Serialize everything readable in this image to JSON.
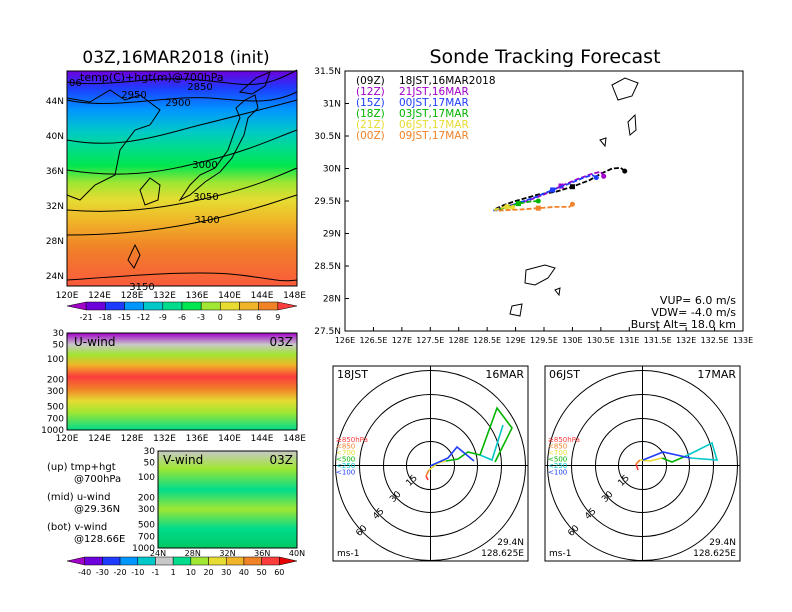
{
  "header": {
    "left_title": "03Z,16MAR2018 (init)",
    "right_title": "Sonde Tracking Forecast"
  },
  "map_panel": {
    "field_label": "temp(C)+hgt(m)@700hPa",
    "corner_value": "06",
    "lon_ticks": [
      "120E",
      "124E",
      "128E",
      "132E",
      "136E",
      "140E",
      "144E",
      "148E"
    ],
    "lat_ticks": [
      "44N",
      "40N",
      "36N",
      "32N",
      "28N",
      "24N"
    ],
    "contour_labels": [
      "2850",
      "2950",
      "2900",
      "3000",
      "3050",
      "3100",
      "3150"
    ],
    "colorbar_labels": [
      "-21",
      "-18",
      "-15",
      "-12",
      "-9",
      "-6",
      "-3",
      "0",
      "3",
      "6",
      "9"
    ],
    "colorbar_colors": [
      "#a000c8",
      "#6e00dc",
      "#1e3cff",
      "#0096ff",
      "#00c8c8",
      "#00dc8c",
      "#00e650",
      "#a0e632",
      "#e6dc32",
      "#f0b428",
      "#f08228",
      "#fa3c3c"
    ]
  },
  "uwind_panel": {
    "label": "U-wind",
    "time": "03Z",
    "p_ticks": [
      "30",
      "50",
      "100",
      "200",
      "300",
      "500",
      "700",
      "1000"
    ],
    "lon_ticks": [
      "120E",
      "124E",
      "128E",
      "132E",
      "136E",
      "140E",
      "144E",
      "148E"
    ]
  },
  "vwind_panel": {
    "label": "V-wind",
    "time": "03Z",
    "p_ticks": [
      "30",
      "50",
      "100",
      "200",
      "300",
      "500",
      "700",
      "1000"
    ],
    "lat_ticks": [
      "24N",
      "28N",
      "32N",
      "36N",
      "40N"
    ]
  },
  "legend_notes": {
    "up": "(up) tmp+hgt",
    "up_sub": "@700hPa",
    "mid": "(mid) u-wind",
    "mid_sub": "@29.36N",
    "bot": "(bot) v-wind",
    "bot_sub": "@128.66E"
  },
  "wind_colorbar": {
    "labels": [
      "-40",
      "-30",
      "-20",
      "-10",
      "-1",
      "1",
      "10",
      "20",
      "30",
      "40",
      "50",
      "60"
    ],
    "colors": [
      "#a000c8",
      "#6e00dc",
      "#1e3cff",
      "#0096ff",
      "#00c8c8",
      "#c8c8c8",
      "#00dc8c",
      "#a0e632",
      "#e6dc32",
      "#f0b428",
      "#f08228",
      "#fa3c3c",
      "#e60000"
    ]
  },
  "chart_data": {
    "type": "line",
    "title": "Sonde Tracking Forecast",
    "xlim": [
      126,
      133
    ],
    "ylim": [
      27.5,
      31.5
    ],
    "x_ticks": [
      "126E",
      "126.5E",
      "127E",
      "127.5E",
      "128E",
      "128.5E",
      "129E",
      "129.5E",
      "130E",
      "130.5E",
      "131E",
      "131.5E",
      "132E",
      "132.5E",
      "133E"
    ],
    "y_ticks": [
      "31.5N",
      "31N",
      "30.5N",
      "30N",
      "29.5N",
      "29N",
      "28.5N",
      "28N",
      "27.5N"
    ],
    "legend": [
      {
        "code": "(09Z)",
        "time": "18JST,16MAR2018",
        "color": "#000000"
      },
      {
        "code": "(12Z)",
        "time": "21JST,16MAR",
        "color": "#a000c8"
      },
      {
        "code": "(15Z)",
        "time": "00JST,17MAR",
        "color": "#1e3cff"
      },
      {
        "code": "(18Z)",
        "time": "03JST,17MAR",
        "color": "#00b400"
      },
      {
        "code": "(21Z)",
        "time": "06JST,17MAR",
        "color": "#e6dc32"
      },
      {
        "code": "(00Z)",
        "time": "09JST,17MAR",
        "color": "#f08228"
      }
    ],
    "series": [
      {
        "color": "#000000",
        "x": [
          130.92,
          130.85,
          130.7,
          130.5,
          130.3,
          130.0,
          129.7,
          129.4,
          129.2,
          129.0,
          128.8,
          128.65
        ],
        "y": [
          29.96,
          30.01,
          30.0,
          29.92,
          29.82,
          29.72,
          29.64,
          29.6,
          29.55,
          29.5,
          29.44,
          29.38
        ]
      },
      {
        "color": "#a000c8",
        "x": [
          130.55,
          130.5,
          130.35,
          130.1,
          129.8,
          129.5,
          129.2,
          128.95,
          128.75,
          128.62
        ],
        "y": [
          29.88,
          29.95,
          29.92,
          29.84,
          29.73,
          29.6,
          29.5,
          29.44,
          29.39,
          29.36
        ]
      },
      {
        "color": "#1e3cff",
        "x": [
          130.42,
          130.35,
          130.2,
          129.95,
          129.65,
          129.35,
          129.05,
          128.85,
          128.68,
          128.6
        ],
        "y": [
          29.86,
          29.9,
          29.86,
          29.77,
          29.67,
          29.56,
          29.47,
          29.41,
          29.37,
          29.35
        ]
      },
      {
        "color": "#00b400",
        "x": [
          129.4,
          129.25,
          129.05,
          128.9,
          128.75,
          128.62
        ],
        "y": [
          29.5,
          29.49,
          29.46,
          29.42,
          29.38,
          29.36
        ]
      },
      {
        "color": "#e6dc32",
        "x": [
          128.95,
          128.85,
          128.72,
          128.62
        ],
        "y": [
          29.4,
          29.41,
          29.39,
          29.36
        ]
      },
      {
        "color": "#f08228",
        "x": [
          130.0,
          129.95,
          129.7,
          129.4,
          129.1,
          128.85,
          128.65
        ],
        "y": [
          29.45,
          29.41,
          29.41,
          29.39,
          29.37,
          29.36,
          29.35
        ]
      }
    ],
    "annotations": {
      "vup": "VUP= 6.0 m/s",
      "vdw": "VDW= -4.0 m/s",
      "burst": "Burst Alt= 18.0 km"
    }
  },
  "hodographs": [
    {
      "left_label": "18JST",
      "right_label": "16MAR",
      "lat": "29.4N",
      "lon": "128.625E",
      "unit": "ms-1",
      "rings": [
        "15",
        "30",
        "45",
        "60"
      ],
      "levels": [
        {
          "t": "≥850hPa",
          "c": "#fa3c3c"
        },
        {
          "t": "<850",
          "c": "#f08228"
        },
        {
          "t": "<700",
          "c": "#e6dc32"
        },
        {
          "t": "<500",
          "c": "#00b400"
        },
        {
          "t": "<250",
          "c": "#00c8c8"
        },
        {
          "t": "<100",
          "c": "#1e3cff"
        }
      ]
    },
    {
      "left_label": "06JST",
      "right_label": "17MAR",
      "lat": "29.4N",
      "lon": "128.625E",
      "unit": "ms-1",
      "rings": [
        "15",
        "30",
        "45",
        "60"
      ],
      "levels": [
        {
          "t": "≥850hPa",
          "c": "#fa3c3c"
        },
        {
          "t": "<850",
          "c": "#f08228"
        },
        {
          "t": "<700",
          "c": "#e6dc32"
        },
        {
          "t": "<500",
          "c": "#00b400"
        },
        {
          "t": "<250",
          "c": "#00c8c8"
        },
        {
          "t": "<100",
          "c": "#1e3cff"
        }
      ]
    }
  ]
}
